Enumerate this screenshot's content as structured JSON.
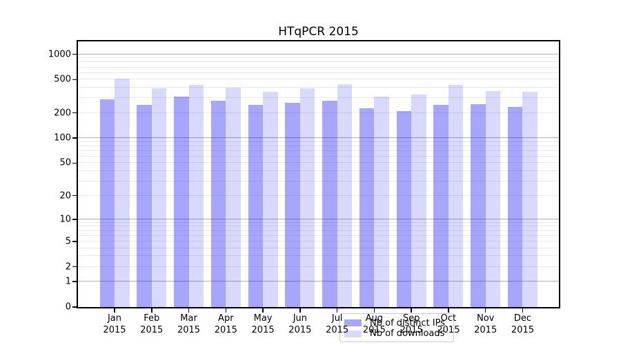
{
  "title": "HTqPCR 2015",
  "legend": {
    "items": [
      {
        "label": "Nb of distinct IPs",
        "color": "rgba(0,0,255,0.35)"
      },
      {
        "label": "Nb of downloads",
        "color": "rgba(0,0,255,0.15)"
      }
    ]
  },
  "colors": {
    "series": [
      "rgba(0,0,255,0.35)",
      "rgba(0,0,255,0.15)"
    ],
    "series_hex_on_white": [
      "#a6a6ff",
      "#d9d9ff"
    ],
    "grid_major": "#b0b0b0",
    "grid_minor": "#e9e9e9",
    "axis": "#000000",
    "background": "#ffffff"
  },
  "chart_data": {
    "type": "bar",
    "title": "HTqPCR 2015",
    "categories": [
      "Jan 2015",
      "Feb 2015",
      "Mar 2015",
      "Apr 2015",
      "May 2015",
      "Jun 2015",
      "Jul 2015",
      "Aug 2015",
      "Sep 2015",
      "Oct 2015",
      "Nov 2015",
      "Dec 2015"
    ],
    "series": [
      {
        "name": "Nb of distinct IPs",
        "values": [
          290,
          252,
          315,
          278,
          248,
          265,
          278,
          229,
          212,
          250,
          255,
          234
        ]
      },
      {
        "name": "Nb of downloads",
        "values": [
          510,
          390,
          435,
          400,
          356,
          396,
          438,
          311,
          330,
          433,
          362,
          358
        ]
      }
    ],
    "y_scale": "log1p",
    "y_ticks": [
      0,
      1,
      2,
      5,
      10,
      20,
      50,
      100,
      200,
      500,
      1000
    ],
    "y_major_gridlines": [
      1,
      10,
      100,
      1000
    ],
    "ylim": [
      0,
      1420
    ],
    "xlabel": "",
    "ylabel": "",
    "grid": true,
    "legend_position": "lower center"
  }
}
